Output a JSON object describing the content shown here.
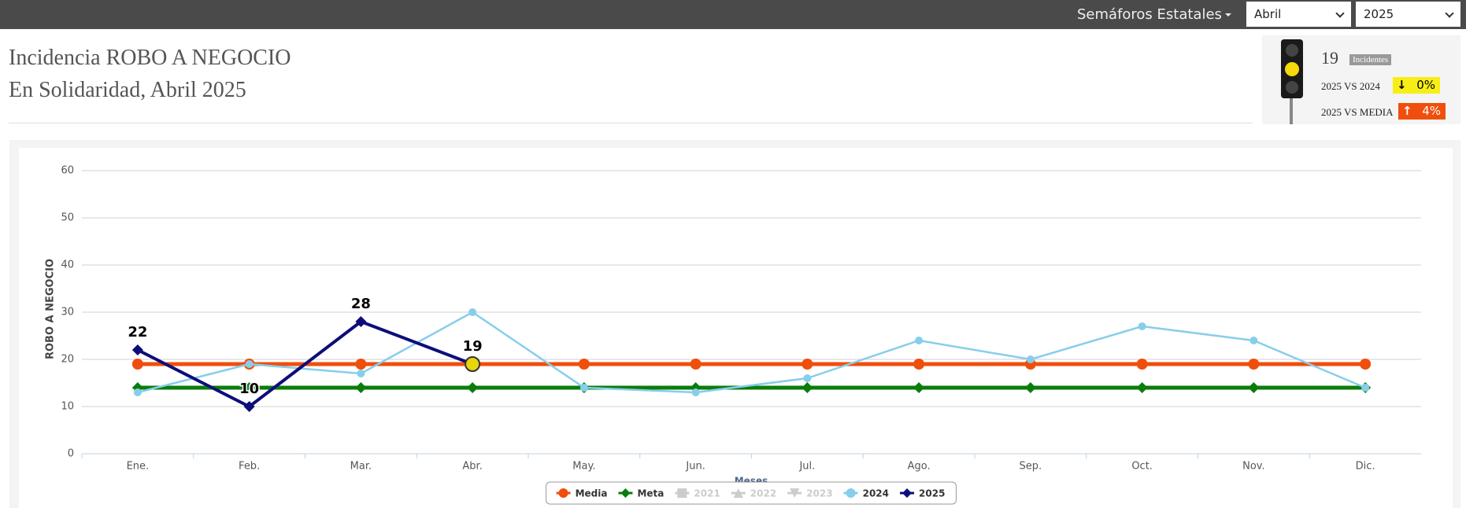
{
  "nav": {
    "menu": "Semáforos Estatales",
    "month": "Abril",
    "year": "2025"
  },
  "header": {
    "title": "Incidencia ROBO A NEGOCIO",
    "subtitle": "En Solidaridad, Abril 2025"
  },
  "indicator": {
    "count": "19",
    "count_label": "Incidentes",
    "vs_prev_label": "2025 VS 2024",
    "vs_prev": "0%",
    "vs_mean_label": "2025 VS MEDIA",
    "vs_mean": "4%"
  },
  "chart_data": {
    "type": "line",
    "y_label": "ROBO A NEGOCIO",
    "x_label": "Meses",
    "categories": [
      "Ene.",
      "Feb.",
      "Mar.",
      "Abr.",
      "May.",
      "Jun.",
      "Jul.",
      "Ago.",
      "Sep.",
      "Oct.",
      "Nov.",
      "Dic."
    ],
    "ylim": [
      0,
      60
    ],
    "yticks": [
      0,
      10,
      20,
      30,
      40,
      50,
      60
    ],
    "grid": true,
    "series": [
      {
        "name": "Media",
        "color": "#f04e0c",
        "marker": "circle",
        "visible": true,
        "values": [
          19,
          19,
          19,
          19,
          19,
          19,
          19,
          19,
          19,
          19,
          19,
          19
        ]
      },
      {
        "name": "Meta",
        "color": "#0a7d0a",
        "marker": "diamond",
        "visible": true,
        "values": [
          14,
          14,
          14,
          14,
          14,
          14,
          14,
          14,
          14,
          14,
          14,
          14
        ]
      },
      {
        "name": "2021",
        "color": "#cccccc",
        "marker": "square",
        "visible": false,
        "values": [
          null,
          null,
          null,
          null,
          null,
          null,
          null,
          null,
          null,
          null,
          null,
          null
        ]
      },
      {
        "name": "2022",
        "color": "#cccccc",
        "marker": "triangle",
        "visible": false,
        "values": [
          null,
          null,
          null,
          null,
          null,
          null,
          null,
          null,
          null,
          null,
          null,
          null
        ]
      },
      {
        "name": "2023",
        "color": "#cccccc",
        "marker": "triangle-down",
        "visible": false,
        "values": [
          null,
          null,
          null,
          null,
          null,
          null,
          null,
          null,
          null,
          null,
          null,
          null
        ]
      },
      {
        "name": "2024",
        "color": "#87ceeb",
        "marker": "circle",
        "visible": true,
        "values": [
          13,
          19,
          17,
          30,
          14,
          13,
          16,
          24,
          20,
          27,
          24,
          14
        ]
      },
      {
        "name": "2025",
        "color": "#0d0d7a",
        "marker": "diamond",
        "visible": true,
        "data_labels": true,
        "values": [
          22,
          10,
          28,
          19,
          null,
          null,
          null,
          null,
          null,
          null,
          null,
          null
        ]
      }
    ]
  }
}
